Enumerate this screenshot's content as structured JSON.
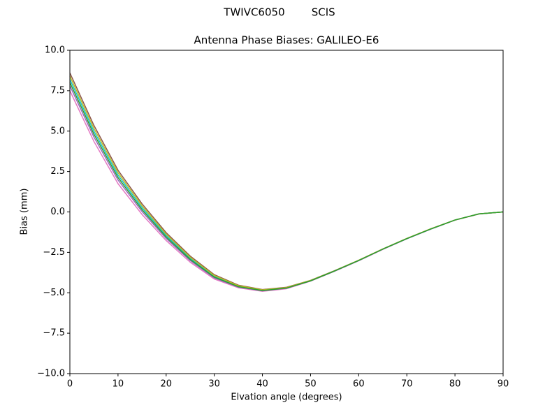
{
  "chart_data": {
    "type": "line",
    "suptitle": "TWIVC6050        SCIS",
    "title": "Antenna Phase Biases: GALILEO-E6",
    "x_label": "Elvation angle (degrees)",
    "y_label": "Bias (mm)",
    "x": [
      0,
      5,
      10,
      15,
      20,
      25,
      30,
      35,
      40,
      45,
      50,
      55,
      60,
      65,
      70,
      75,
      80,
      85,
      90
    ],
    "series": [
      {
        "color": "#e377c2",
        "values": [
          7.5,
          4.36,
          1.75,
          -0.16,
          -1.77,
          -3.11,
          -4.15,
          -4.69,
          -4.91,
          -4.75,
          -4.28,
          -3.67,
          -3.02,
          -2.32,
          -1.66,
          -1.06,
          -0.51,
          -0.13,
          0
        ]
      },
      {
        "color": "#9467bd",
        "values": [
          7.8,
          4.63,
          1.98,
          0.02,
          -1.64,
          -3.01,
          -4.08,
          -4.65,
          -4.88,
          -4.72,
          -4.27,
          -3.66,
          -3.01,
          -2.31,
          -1.66,
          -1.06,
          -0.5,
          -0.12,
          0
        ]
      },
      {
        "color": "#17becf",
        "values": [
          8.2,
          4.99,
          2.28,
          0.26,
          -1.46,
          -2.87,
          -3.98,
          -4.59,
          -4.84,
          -4.69,
          -4.25,
          -3.65,
          -3.0,
          -2.3,
          -1.65,
          -1.05,
          -0.5,
          -0.12,
          0
        ]
      },
      {
        "color": "#8c564b",
        "values": [
          8.6,
          5.35,
          2.58,
          0.5,
          -1.28,
          -2.73,
          -3.88,
          -4.53,
          -4.8,
          -4.66,
          -4.23,
          -3.63,
          -2.99,
          -2.29,
          -1.64,
          -1.04,
          -0.5,
          -0.12,
          0
        ]
      },
      {
        "color": "#bcbd22",
        "values": [
          8.4,
          5.17,
          2.43,
          0.38,
          -1.37,
          -2.8,
          -3.93,
          -4.56,
          -4.82,
          -4.68,
          -4.24,
          -3.64,
          -2.99,
          -2.29,
          -1.64,
          -1.04,
          -0.5,
          -0.12,
          0
        ]
      },
      {
        "color": "#2ca02c",
        "values": [
          8.0,
          4.81,
          2.13,
          0.14,
          -1.55,
          -2.94,
          -4.03,
          -4.62,
          -4.86,
          -4.71,
          -4.26,
          -3.65,
          -3.0,
          -2.3,
          -1.65,
          -1.05,
          -0.5,
          -0.12,
          0
        ]
      }
    ],
    "xlim": [
      0,
      90
    ],
    "xticks": [
      0,
      10,
      20,
      30,
      40,
      50,
      60,
      70,
      80,
      90
    ],
    "ylim": [
      -10,
      10
    ],
    "yticks": [
      {
        "value": -10,
        "label": "−10.0"
      },
      {
        "value": -7.5,
        "label": "−7.5"
      },
      {
        "value": -5,
        "label": "−5.0"
      },
      {
        "value": -2.5,
        "label": "−2.5"
      },
      {
        "value": 0,
        "label": "0.0"
      },
      {
        "value": 2.5,
        "label": "2.5"
      },
      {
        "value": 5,
        "label": "5.0"
      },
      {
        "value": 7.5,
        "label": "7.5"
      },
      {
        "value": 10,
        "label": "10.0"
      }
    ],
    "grid": false
  }
}
